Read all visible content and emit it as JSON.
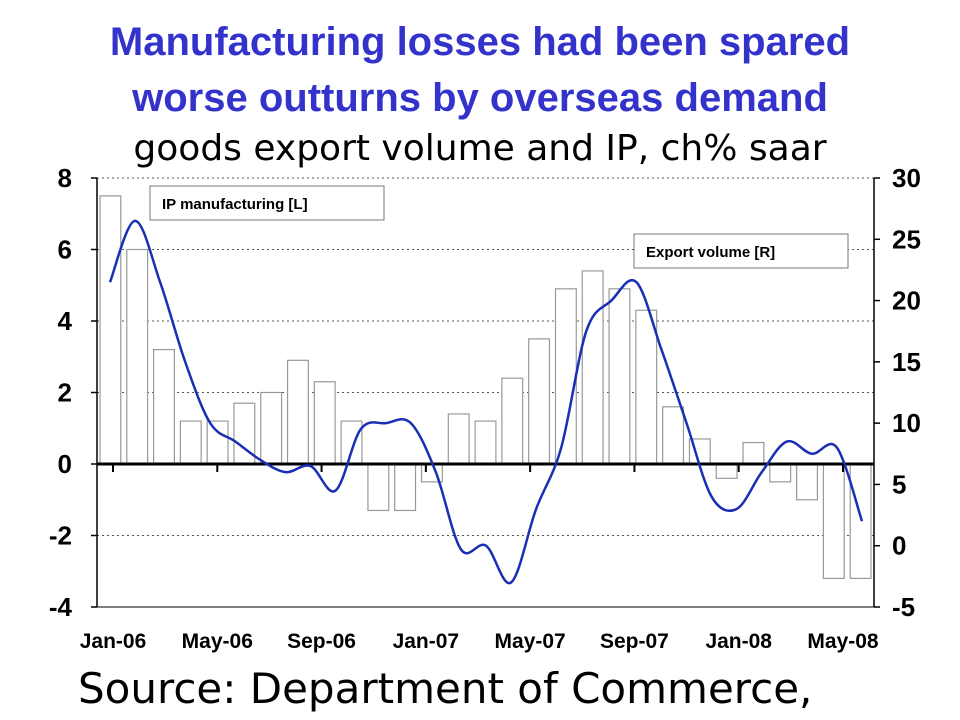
{
  "title_line1": "Manufacturing losses had been spared",
  "title_line2": "worse outturns by overseas demand",
  "subtitle": "goods export volume and IP, ch% saar",
  "source": "Source: Department of Commerce,",
  "chart_data": {
    "type": "bar+line",
    "x_tick_labels": [
      "Jan-06",
      "May-06",
      "Sep-06",
      "Jan-07",
      "May-07",
      "Sep-07",
      "Jan-08",
      "May-08"
    ],
    "left_axis": {
      "ylim": [
        -4,
        8
      ],
      "ticks": [
        -4,
        -2,
        0,
        2,
        4,
        6,
        8
      ]
    },
    "right_axis": {
      "ylim": [
        -5,
        30
      ],
      "ticks": [
        -5,
        0,
        5,
        10,
        15,
        20,
        25,
        30
      ]
    },
    "grid": "horizontal dotted",
    "series": [
      {
        "name": "IP manufacturing [L]",
        "kind": "bar",
        "axis": "left",
        "color": "#ffffff",
        "border": "#999999",
        "values": [
          7.5,
          6.0,
          3.2,
          1.2,
          1.2,
          1.7,
          2.0,
          2.9,
          2.3,
          1.2,
          -1.3,
          -1.3,
          -0.5,
          1.4,
          1.2,
          2.4,
          3.5,
          4.9,
          5.4,
          4.9,
          4.3,
          1.6,
          0.7,
          -0.4,
          0.6,
          -0.5,
          -1.0,
          -3.2,
          -3.2
        ]
      },
      {
        "name": "Export volume [R]",
        "kind": "line",
        "axis": "right",
        "color": "#1a2fb5",
        "values": [
          21.5,
          26.5,
          21.5,
          15.0,
          10.0,
          8.5,
          7.0,
          6.0,
          6.5,
          4.5,
          9.5,
          10.0,
          10.0,
          6.0,
          -0.3,
          0.0,
          -3.0,
          3.0,
          8.0,
          17.5,
          20.0,
          21.5,
          16.0,
          10.0,
          4.0,
          3.0,
          6.0,
          8.5,
          7.5,
          8.0,
          2.0
        ]
      }
    ]
  }
}
